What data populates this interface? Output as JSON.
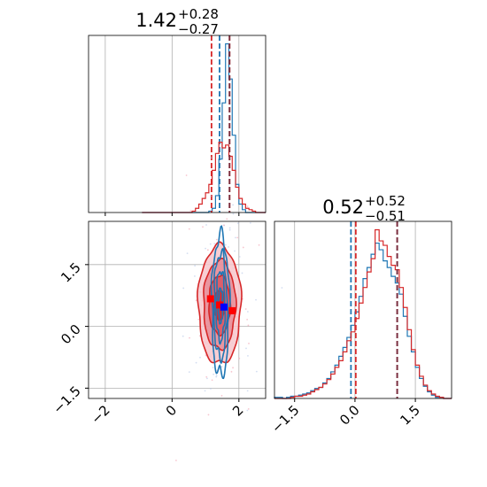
{
  "chart_data": {
    "type": "corner",
    "parameters": 2,
    "series_colors": {
      "primary": "#1f77b4",
      "secondary": "#d62728",
      "median_marker_blue": "#0000ff",
      "median_marker_red": "#ff0000"
    },
    "panels": [
      {
        "id": "hist-param-1",
        "type": "histogram",
        "title": {
          "value": "1.42",
          "plus": "+0.28",
          "minus": "−0.27"
        },
        "xlim": [
          -2.5,
          2.8
        ],
        "bins_x": [
          -0.9,
          -0.8,
          -0.7,
          -0.6,
          -0.5,
          -0.4,
          -0.3,
          -0.2,
          -0.1,
          0.0,
          0.1,
          0.2,
          0.3,
          0.4,
          0.5,
          0.6,
          0.7,
          0.8,
          0.9,
          1.0,
          1.1,
          1.2,
          1.3,
          1.4,
          1.5,
          1.6,
          1.7,
          1.8,
          1.9,
          2.0,
          2.1,
          2.2,
          2.3,
          2.4,
          2.5,
          2.6,
          2.7
        ],
        "series": [
          {
            "name": "",
            "color": "#1f77b4",
            "counts": [
              0,
              0,
              0,
              0,
              0,
              0,
              0,
              0,
              0,
              0,
              0,
              0,
              0,
              0,
              0,
              0,
              0,
              0,
              0,
              0,
              1,
              3,
              12,
              38,
              78,
              120,
              95,
              55,
              20,
              6,
              2,
              0,
              0,
              0,
              0,
              0,
              0
            ],
            "quantile_lines": [
              1.42
            ]
          },
          {
            "name": "",
            "color": "#d62728",
            "counts": [
              0,
              0,
              0,
              0,
              0,
              0,
              0,
              0,
              0,
              0,
              0,
              0,
              0,
              0,
              0,
              1,
              3,
              6,
              10,
              14,
              20,
              30,
              42,
              50,
              46,
              48,
              40,
              30,
              18,
              10,
              6,
              3,
              2,
              1,
              0,
              0,
              0
            ],
            "quantile_lines": [
              1.18,
              1.72
            ]
          }
        ],
        "extra_quantile_lines": [
          {
            "color": "#7a3040",
            "x": 1.72
          }
        ]
      },
      {
        "id": "hist-param-2",
        "type": "histogram",
        "title": {
          "value": "0.52",
          "plus": "+0.52",
          "minus": "−0.51"
        },
        "xlim": [
          -2.0,
          2.4
        ],
        "xticks": [
          -1.5,
          0.0,
          1.5
        ],
        "xtick_labels": [
          "−1.5",
          "0.0",
          "1.5"
        ],
        "bins_x": [
          -2.0,
          -1.9,
          -1.8,
          -1.7,
          -1.6,
          -1.5,
          -1.4,
          -1.3,
          -1.2,
          -1.1,
          -1.0,
          -0.9,
          -0.8,
          -0.7,
          -0.6,
          -0.5,
          -0.4,
          -0.3,
          -0.2,
          -0.1,
          0.0,
          0.1,
          0.2,
          0.3,
          0.4,
          0.5,
          0.6,
          0.7,
          0.8,
          0.9,
          1.0,
          1.1,
          1.2,
          1.3,
          1.4,
          1.5,
          1.6,
          1.7,
          1.8,
          1.9,
          2.0,
          2.1,
          2.2,
          2.3
        ],
        "series": [
          {
            "name": "",
            "color": "#1f77b4",
            "counts": [
              1,
              1,
              0,
              1,
              2,
              2,
              3,
              4,
              5,
              7,
              9,
              10,
              14,
              18,
              24,
              30,
              38,
              46,
              55,
              66,
              78,
              92,
              108,
              118,
              130,
              140,
              134,
              124,
              118,
              110,
              104,
              94,
              74,
              56,
              42,
              28,
              18,
              11,
              6,
              3,
              1,
              1,
              0,
              0
            ],
            "quantile_lines": [
              -0.1,
              1.05
            ]
          },
          {
            "name": "",
            "color": "#d62728",
            "counts": [
              0,
              0,
              0,
              0,
              1,
              2,
              2,
              3,
              4,
              6,
              8,
              10,
              13,
              17,
              22,
              28,
              34,
              42,
              52,
              60,
              72,
              86,
              100,
              114,
              126,
              152,
              142,
              138,
              128,
              120,
              116,
              100,
              82,
              62,
              44,
              30,
              20,
              12,
              7,
              4,
              2,
              1,
              0,
              0
            ],
            "quantile_lines": [
              0.02,
              1.05
            ]
          }
        ],
        "extra_quantile_lines": [
          {
            "color": "#7a3040",
            "x": 1.05
          }
        ]
      },
      {
        "id": "joint-param-1-2",
        "type": "contour",
        "xlim": [
          -2.5,
          2.8
        ],
        "ylim": [
          -1.75,
          2.55
        ],
        "xticks": [
          -2,
          0,
          2
        ],
        "xtick_labels": [
          "−2",
          "0",
          "2"
        ],
        "yticks": [
          -1.5,
          0.0,
          1.5
        ],
        "ytick_labels": [
          "−1.5",
          "0.0",
          "1.5"
        ],
        "red_contours": {
          "center": [
            1.42,
            0.52
          ],
          "sigma": [
            0.32,
            0.72
          ],
          "levels": [
            0.5,
            1.0,
            1.5,
            2.0
          ]
        },
        "blue_contours": {
          "center": [
            1.45,
            0.5
          ],
          "sigma": [
            0.13,
            0.85
          ],
          "levels": [
            0.5,
            1.0,
            1.5,
            2.0
          ]
        },
        "markers": [
          {
            "color": "#ff0000",
            "x": 1.15,
            "y": 0.67,
            "shape": "square"
          },
          {
            "color": "#ff0000",
            "x": 1.42,
            "y": 0.52,
            "shape": "square"
          },
          {
            "color": "#ff0000",
            "x": 1.8,
            "y": 0.38,
            "shape": "square"
          },
          {
            "color": "#0000ff",
            "x": 1.55,
            "y": 0.47,
            "shape": "square"
          }
        ]
      }
    ]
  }
}
